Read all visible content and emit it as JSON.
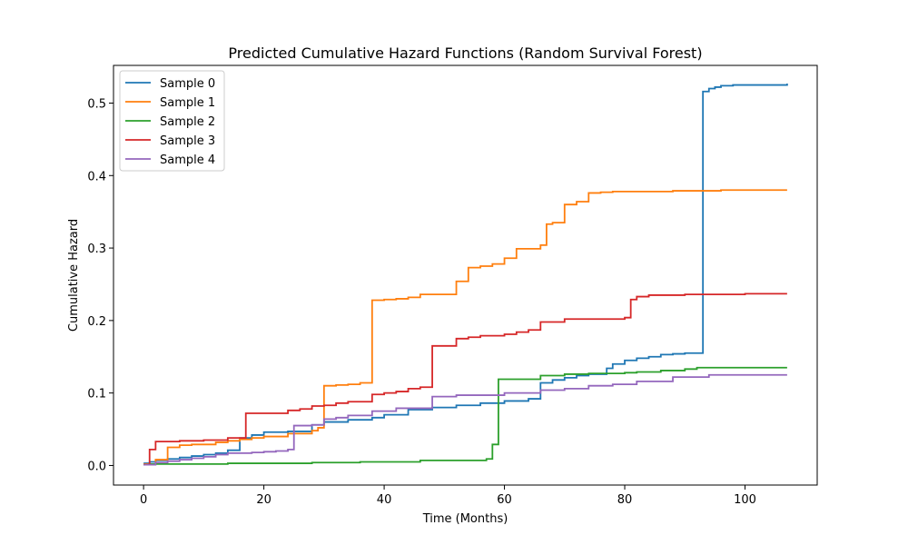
{
  "chart_data": {
    "type": "line",
    "step": true,
    "title": "Predicted Cumulative Hazard Functions (Random Survival Forest)",
    "xlabel": "Time (Months)",
    "ylabel": "Cumulative Hazard",
    "xlim": [
      -5,
      112
    ],
    "ylim": [
      -0.027,
      0.552
    ],
    "xticks": [
      0,
      20,
      40,
      60,
      80,
      100
    ],
    "yticks": [
      0.0,
      0.1,
      0.2,
      0.3,
      0.4,
      0.5
    ],
    "ytick_labels": [
      "0.0",
      "0.1",
      "0.2",
      "0.3",
      "0.4",
      "0.5"
    ],
    "grid": false,
    "legend_position": "upper-left",
    "series": [
      {
        "name": "Sample 0",
        "color": "#1f77b4",
        "x": [
          0,
          1,
          2,
          4,
          6,
          8,
          10,
          12,
          14,
          16,
          18,
          20,
          24,
          28,
          30,
          34,
          38,
          40,
          44,
          48,
          52,
          56,
          60,
          64,
          66,
          68,
          70,
          72,
          74,
          77,
          78,
          80,
          82,
          84,
          86,
          88,
          90,
          93,
          94,
          95,
          96,
          98,
          100,
          107
        ],
        "y": [
          0.003,
          0.005,
          0.007,
          0.009,
          0.011,
          0.013,
          0.015,
          0.017,
          0.021,
          0.038,
          0.042,
          0.046,
          0.047,
          0.056,
          0.06,
          0.063,
          0.066,
          0.07,
          0.077,
          0.08,
          0.083,
          0.086,
          0.089,
          0.092,
          0.114,
          0.118,
          0.121,
          0.124,
          0.126,
          0.134,
          0.14,
          0.145,
          0.148,
          0.15,
          0.153,
          0.154,
          0.155,
          0.516,
          0.52,
          0.522,
          0.524,
          0.525,
          0.525,
          0.527
        ]
      },
      {
        "name": "Sample 1",
        "color": "#ff7f0e",
        "x": [
          0,
          2,
          4,
          6,
          8,
          12,
          14,
          16,
          18,
          20,
          24,
          28,
          29,
          30,
          32,
          34,
          36,
          38,
          40,
          42,
          44,
          46,
          52,
          54,
          56,
          58,
          60,
          62,
          66,
          67,
          68,
          70,
          72,
          74,
          76,
          78,
          80,
          86,
          88,
          96,
          100,
          107
        ],
        "y": [
          0.002,
          0.008,
          0.025,
          0.028,
          0.029,
          0.032,
          0.034,
          0.036,
          0.038,
          0.04,
          0.044,
          0.048,
          0.052,
          0.11,
          0.111,
          0.112,
          0.114,
          0.228,
          0.229,
          0.23,
          0.232,
          0.236,
          0.254,
          0.273,
          0.275,
          0.278,
          0.286,
          0.299,
          0.304,
          0.333,
          0.335,
          0.36,
          0.364,
          0.376,
          0.377,
          0.378,
          0.378,
          0.378,
          0.379,
          0.38,
          0.38,
          0.38
        ]
      },
      {
        "name": "Sample 2",
        "color": "#2ca02c",
        "x": [
          0,
          1,
          14,
          28,
          36,
          46,
          57,
          58,
          59,
          66,
          70,
          74,
          76,
          80,
          82,
          86,
          90,
          92,
          107
        ],
        "y": [
          0.001,
          0.002,
          0.003,
          0.004,
          0.005,
          0.007,
          0.009,
          0.029,
          0.119,
          0.124,
          0.126,
          0.127,
          0.127,
          0.128,
          0.129,
          0.131,
          0.133,
          0.135,
          0.135
        ]
      },
      {
        "name": "Sample 3",
        "color": "#d62728",
        "x": [
          0,
          1,
          2,
          6,
          10,
          14,
          17,
          20,
          24,
          26,
          28,
          30,
          32,
          34,
          38,
          40,
          42,
          44,
          46,
          48,
          52,
          54,
          56,
          60,
          62,
          64,
          66,
          70,
          80,
          81,
          82,
          84,
          86,
          90,
          100,
          107
        ],
        "y": [
          0.001,
          0.022,
          0.033,
          0.034,
          0.035,
          0.038,
          0.072,
          0.072,
          0.076,
          0.078,
          0.082,
          0.083,
          0.086,
          0.088,
          0.098,
          0.1,
          0.102,
          0.106,
          0.108,
          0.165,
          0.175,
          0.177,
          0.179,
          0.181,
          0.184,
          0.187,
          0.198,
          0.202,
          0.204,
          0.229,
          0.233,
          0.235,
          0.235,
          0.236,
          0.237,
          0.237
        ]
      },
      {
        "name": "Sample 4",
        "color": "#9467bd",
        "x": [
          0,
          2,
          4,
          6,
          8,
          10,
          12,
          14,
          18,
          20,
          22,
          24,
          25,
          28,
          30,
          32,
          34,
          38,
          42,
          48,
          52,
          60,
          66,
          70,
          74,
          78,
          82,
          88,
          94,
          107
        ],
        "y": [
          0.001,
          0.004,
          0.006,
          0.008,
          0.01,
          0.012,
          0.015,
          0.017,
          0.018,
          0.019,
          0.02,
          0.022,
          0.055,
          0.056,
          0.064,
          0.066,
          0.069,
          0.075,
          0.079,
          0.095,
          0.097,
          0.1,
          0.104,
          0.106,
          0.11,
          0.112,
          0.116,
          0.122,
          0.125,
          0.125
        ]
      }
    ]
  }
}
